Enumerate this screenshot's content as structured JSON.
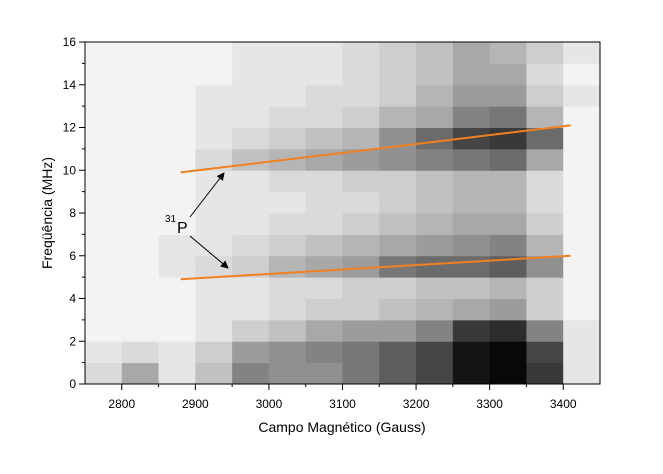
{
  "chart_data": {
    "type": "heatmap",
    "xlabel": "Campo Magnético (Gauss)",
    "ylabel": "Freqüência (MHz)",
    "xlim": [
      2750,
      3450
    ],
    "ylim": [
      0,
      16
    ],
    "xticks": [
      2800,
      2900,
      3000,
      3100,
      3200,
      3300,
      3400
    ],
    "yticks": [
      0,
      2,
      4,
      6,
      8,
      10,
      12,
      14,
      16
    ],
    "xbins": [
      2750,
      2800,
      2850,
      2900,
      2950,
      3000,
      3050,
      3100,
      3150,
      3200,
      3250,
      3300,
      3350,
      3400,
      3450
    ],
    "ybins": [
      0,
      1,
      2,
      3,
      4,
      5,
      6,
      7,
      8,
      9,
      10,
      11,
      12,
      13,
      14,
      15,
      16
    ],
    "z": [
      [
        0.15,
        0.35,
        0.1,
        0.25,
        0.5,
        0.45,
        0.45,
        0.55,
        0.65,
        0.75,
        0.95,
        1,
        0.8,
        0.1
      ],
      [
        0.1,
        0.15,
        0.1,
        0.2,
        0.4,
        0.45,
        0.5,
        0.55,
        0.65,
        0.75,
        0.95,
        1,
        0.75,
        0.1
      ],
      [
        0.05,
        0.05,
        0.05,
        0.1,
        0.2,
        0.25,
        0.35,
        0.4,
        0.4,
        0.5,
        0.8,
        0.85,
        0.5,
        0.1
      ],
      [
        0.05,
        0.05,
        0.05,
        0.1,
        0.1,
        0.15,
        0.2,
        0.2,
        0.25,
        0.3,
        0.35,
        0.4,
        0.2,
        0.05
      ],
      [
        0.05,
        0.05,
        0.05,
        0.1,
        0.1,
        0.15,
        0.15,
        0.2,
        0.2,
        0.25,
        0.25,
        0.3,
        0.2,
        0.05
      ],
      [
        0.05,
        0.05,
        0.1,
        0.15,
        0.2,
        0.3,
        0.35,
        0.4,
        0.55,
        0.6,
        0.6,
        0.65,
        0.45,
        0.05
      ],
      [
        0.05,
        0.05,
        0.1,
        0.1,
        0.15,
        0.2,
        0.25,
        0.3,
        0.35,
        0.4,
        0.45,
        0.5,
        0.3,
        0.05
      ],
      [
        0.05,
        0.05,
        0.05,
        0.1,
        0.1,
        0.15,
        0.15,
        0.2,
        0.25,
        0.3,
        0.35,
        0.35,
        0.2,
        0.05
      ],
      [
        0.05,
        0.05,
        0.05,
        0.1,
        0.1,
        0.1,
        0.15,
        0.15,
        0.2,
        0.25,
        0.3,
        0.3,
        0.15,
        0.05
      ],
      [
        0.05,
        0.05,
        0.05,
        0.1,
        0.1,
        0.15,
        0.15,
        0.2,
        0.2,
        0.25,
        0.3,
        0.3,
        0.15,
        0.05
      ],
      [
        0.05,
        0.05,
        0.05,
        0.15,
        0.25,
        0.3,
        0.35,
        0.4,
        0.45,
        0.5,
        0.55,
        0.6,
        0.35,
        0.05
      ],
      [
        0.05,
        0.05,
        0.05,
        0.1,
        0.15,
        0.2,
        0.25,
        0.3,
        0.45,
        0.6,
        0.75,
        0.8,
        0.6,
        0.05
      ],
      [
        0.05,
        0.05,
        0.05,
        0.1,
        0.1,
        0.15,
        0.15,
        0.2,
        0.3,
        0.35,
        0.5,
        0.55,
        0.3,
        0.05
      ],
      [
        0.05,
        0.05,
        0.05,
        0.1,
        0.1,
        0.1,
        0.15,
        0.15,
        0.2,
        0.3,
        0.4,
        0.4,
        0.2,
        0.1
      ],
      [
        0.05,
        0.05,
        0.05,
        0.05,
        0.1,
        0.1,
        0.1,
        0.15,
        0.2,
        0.25,
        0.35,
        0.35,
        0.15,
        0.05
      ],
      [
        0.05,
        0.05,
        0.05,
        0.05,
        0.1,
        0.1,
        0.1,
        0.15,
        0.2,
        0.25,
        0.35,
        0.3,
        0.2,
        0.1
      ]
    ],
    "lines": [
      {
        "color": "#f08020",
        "x": [
          2880,
          3410
        ],
        "values": [
          9.9,
          12.1
        ]
      },
      {
        "color": "#f08020",
        "x": [
          2880,
          3410
        ],
        "values": [
          4.9,
          6.0
        ]
      }
    ],
    "annotation": {
      "superscript": "31",
      "text": "P"
    }
  }
}
